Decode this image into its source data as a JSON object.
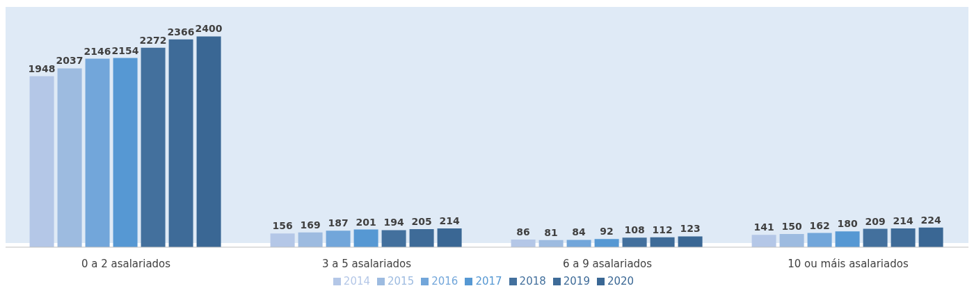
{
  "chart_data": {
    "type": "bar",
    "categories": [
      "0 a 2 asalariados",
      "3 a 5 asalariados",
      "6 a 9 asalariados",
      "10 ou máis asalariados"
    ],
    "series": [
      {
        "name": "2014",
        "color": "#b4c7e7",
        "values": [
          1948,
          156,
          86,
          141
        ]
      },
      {
        "name": "2015",
        "color": "#9dbbe0",
        "values": [
          2037,
          169,
          81,
          150
        ]
      },
      {
        "name": "2016",
        "color": "#72a6da",
        "values": [
          2146,
          187,
          84,
          162
        ]
      },
      {
        "name": "2017",
        "color": "#5698d3",
        "values": [
          2154,
          201,
          92,
          180
        ]
      },
      {
        "name": "2018",
        "color": "#43709d",
        "values": [
          2272,
          194,
          108,
          209
        ]
      },
      {
        "name": "2019",
        "color": "#3e6b98",
        "values": [
          2366,
          205,
          112,
          214
        ]
      },
      {
        "name": "2020",
        "color": "#3a6794",
        "values": [
          2400,
          214,
          123,
          224
        ]
      }
    ],
    "data_labels": true,
    "legend": "bottom",
    "grid": false
  }
}
